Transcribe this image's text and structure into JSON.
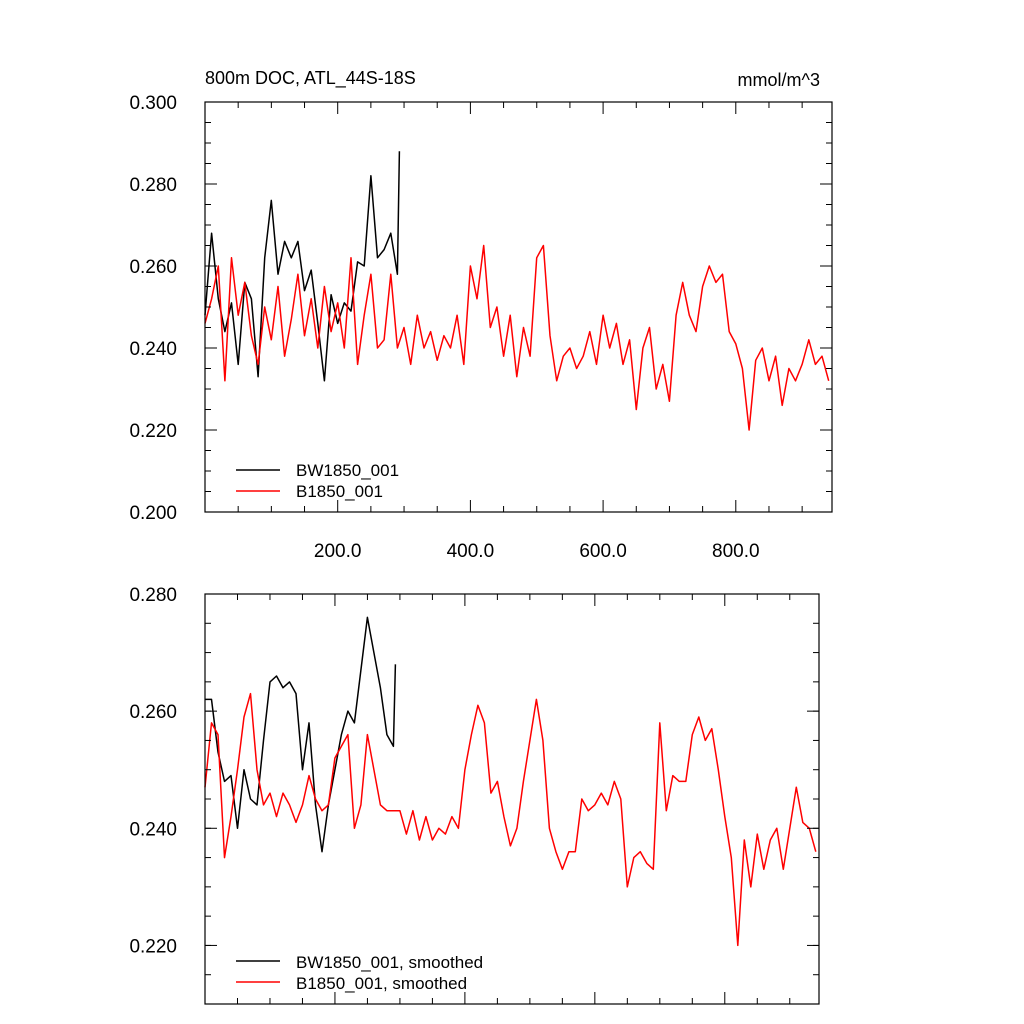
{
  "chart_data": [
    {
      "type": "line",
      "title": "800m DOC, ATL_44S-18S",
      "units": "mmol/m^3",
      "xlim": [
        0,
        945
      ],
      "ylim": [
        0.2,
        0.3
      ],
      "x_ticks": [
        200,
        400,
        600,
        800
      ],
      "x_tick_labels": [
        "200.0",
        "400.0",
        "600.0",
        "800.0"
      ],
      "y_ticks": [
        0.2,
        0.22,
        0.24,
        0.26,
        0.28,
        0.3
      ],
      "y_tick_labels": [
        "0.200",
        "0.220",
        "0.240",
        "0.260",
        "0.280",
        "0.300"
      ],
      "grid": false,
      "legend_position": "bottom-left",
      "series": [
        {
          "name": "BW1850_001",
          "color": "#000000",
          "x": [
            0,
            10,
            20,
            30,
            40,
            50,
            60,
            70,
            80,
            90,
            100,
            110,
            120,
            130,
            140,
            150,
            160,
            170,
            180,
            190,
            200,
            210,
            220,
            230,
            240,
            250,
            260,
            270,
            280,
            290,
            293
          ],
          "values": [
            0.248,
            0.268,
            0.252,
            0.244,
            0.251,
            0.236,
            0.256,
            0.252,
            0.233,
            0.262,
            0.276,
            0.258,
            0.266,
            0.262,
            0.266,
            0.254,
            0.259,
            0.246,
            0.232,
            0.253,
            0.246,
            0.251,
            0.249,
            0.261,
            0.26,
            0.282,
            0.262,
            0.264,
            0.268,
            0.258,
            0.288
          ]
        },
        {
          "name": "B1850_001",
          "color": "#ff0000",
          "x": [
            0,
            10,
            20,
            30,
            40,
            50,
            60,
            70,
            80,
            90,
            100,
            110,
            120,
            130,
            140,
            150,
            160,
            170,
            180,
            190,
            200,
            210,
            220,
            230,
            240,
            250,
            260,
            270,
            280,
            290,
            300,
            310,
            320,
            330,
            340,
            350,
            360,
            370,
            380,
            390,
            400,
            410,
            420,
            430,
            440,
            450,
            460,
            470,
            480,
            490,
            500,
            510,
            520,
            530,
            540,
            550,
            560,
            570,
            580,
            590,
            600,
            610,
            620,
            630,
            640,
            650,
            660,
            670,
            680,
            690,
            700,
            710,
            720,
            730,
            740,
            750,
            760,
            770,
            780,
            790,
            800,
            810,
            820,
            830,
            840,
            850,
            860,
            870,
            880,
            890,
            900,
            910,
            920,
            930,
            940
          ],
          "values": [
            0.246,
            0.252,
            0.26,
            0.232,
            0.262,
            0.248,
            0.256,
            0.243,
            0.236,
            0.25,
            0.242,
            0.255,
            0.238,
            0.247,
            0.258,
            0.243,
            0.252,
            0.24,
            0.255,
            0.244,
            0.251,
            0.24,
            0.262,
            0.236,
            0.248,
            0.258,
            0.24,
            0.242,
            0.258,
            0.24,
            0.245,
            0.236,
            0.248,
            0.24,
            0.244,
            0.237,
            0.243,
            0.24,
            0.248,
            0.236,
            0.26,
            0.252,
            0.265,
            0.245,
            0.25,
            0.238,
            0.248,
            0.233,
            0.245,
            0.238,
            0.262,
            0.265,
            0.243,
            0.232,
            0.238,
            0.24,
            0.235,
            0.238,
            0.244,
            0.236,
            0.248,
            0.24,
            0.246,
            0.236,
            0.242,
            0.225,
            0.24,
            0.245,
            0.23,
            0.236,
            0.227,
            0.248,
            0.256,
            0.248,
            0.244,
            0.255,
            0.26,
            0.256,
            0.258,
            0.244,
            0.241,
            0.235,
            0.22,
            0.237,
            0.24,
            0.232,
            0.238,
            0.226,
            0.235,
            0.232,
            0.236,
            0.242,
            0.236,
            0.238,
            0.232
          ]
        }
      ]
    },
    {
      "type": "line",
      "xlim": [
        0,
        945
      ],
      "ylim": [
        0.21,
        0.28
      ],
      "y_ticks": [
        0.22,
        0.24,
        0.26,
        0.28
      ],
      "y_tick_labels": [
        "0.220",
        "0.240",
        "0.260",
        "0.280"
      ],
      "grid": false,
      "legend_position": "bottom-left",
      "series": [
        {
          "name": "BW1850_001, smoothed",
          "color": "#000000",
          "x": [
            0,
            10,
            20,
            30,
            40,
            50,
            60,
            70,
            80,
            90,
            100,
            110,
            120,
            130,
            140,
            150,
            160,
            170,
            180,
            190,
            200,
            210,
            220,
            230,
            240,
            250,
            260,
            270,
            280,
            290,
            293
          ],
          "values": [
            0.262,
            0.262,
            0.253,
            0.248,
            0.249,
            0.24,
            0.25,
            0.245,
            0.244,
            0.255,
            0.265,
            0.266,
            0.264,
            0.265,
            0.263,
            0.25,
            0.258,
            0.244,
            0.236,
            0.244,
            0.25,
            0.256,
            0.26,
            0.258,
            0.267,
            0.276,
            0.27,
            0.264,
            0.256,
            0.254,
            0.268
          ]
        },
        {
          "name": "B1850_001, smoothed",
          "color": "#ff0000",
          "x": [
            0,
            10,
            20,
            30,
            40,
            50,
            60,
            70,
            80,
            90,
            100,
            110,
            120,
            130,
            140,
            150,
            160,
            170,
            180,
            190,
            200,
            210,
            220,
            230,
            240,
            250,
            260,
            270,
            280,
            290,
            300,
            310,
            320,
            330,
            340,
            350,
            360,
            370,
            380,
            390,
            400,
            410,
            420,
            430,
            440,
            450,
            460,
            470,
            480,
            490,
            500,
            510,
            520,
            530,
            540,
            550,
            560,
            570,
            580,
            590,
            600,
            610,
            620,
            630,
            640,
            650,
            660,
            670,
            680,
            690,
            700,
            710,
            720,
            730,
            740,
            750,
            760,
            770,
            780,
            790,
            800,
            810,
            820,
            830,
            840,
            850,
            860,
            870,
            880,
            890,
            900,
            910,
            920,
            930,
            940
          ],
          "values": [
            0.247,
            0.258,
            0.256,
            0.235,
            0.242,
            0.25,
            0.259,
            0.263,
            0.25,
            0.244,
            0.246,
            0.242,
            0.246,
            0.244,
            0.241,
            0.244,
            0.249,
            0.245,
            0.243,
            0.244,
            0.252,
            0.254,
            0.256,
            0.24,
            0.244,
            0.256,
            0.25,
            0.244,
            0.243,
            0.243,
            0.243,
            0.239,
            0.243,
            0.238,
            0.242,
            0.238,
            0.24,
            0.239,
            0.242,
            0.24,
            0.25,
            0.256,
            0.261,
            0.258,
            0.246,
            0.248,
            0.242,
            0.237,
            0.24,
            0.248,
            0.255,
            0.262,
            0.255,
            0.24,
            0.236,
            0.233,
            0.236,
            0.236,
            0.245,
            0.243,
            0.244,
            0.246,
            0.244,
            0.248,
            0.245,
            0.23,
            0.235,
            0.236,
            0.234,
            0.233,
            0.258,
            0.243,
            0.249,
            0.248,
            0.248,
            0.256,
            0.259,
            0.255,
            0.257,
            0.25,
            0.242,
            0.235,
            0.22,
            0.238,
            0.23,
            0.239,
            0.233,
            0.238,
            0.24,
            0.233,
            0.24,
            0.247,
            0.241,
            0.24,
            0.236
          ]
        }
      ]
    }
  ]
}
